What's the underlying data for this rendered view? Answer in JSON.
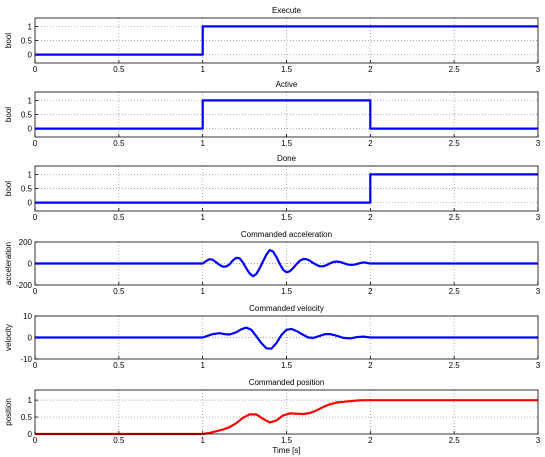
{
  "chart_data": [
    {
      "type": "line",
      "title": "Execute",
      "ylabel": "bool",
      "xlabel": "",
      "xlim": [
        0,
        3
      ],
      "ylim": [
        -0.3,
        1.3
      ],
      "xticks": [
        "0",
        "0.5",
        "1",
        "1.5",
        "2",
        "2.5",
        "3"
      ],
      "yticks": [
        "0",
        "0.5",
        "1"
      ],
      "grid": true,
      "color": "#0000ff",
      "series": [
        {
          "x": [
            0,
            1,
            1,
            3
          ],
          "y": [
            0,
            0,
            1,
            1
          ]
        }
      ]
    },
    {
      "type": "line",
      "title": "Active",
      "ylabel": "bool",
      "xlabel": "",
      "xlim": [
        0,
        3
      ],
      "ylim": [
        -0.3,
        1.3
      ],
      "xticks": [
        "0",
        "0.5",
        "1",
        "1.5",
        "2",
        "2.5",
        "3"
      ],
      "yticks": [
        "0",
        "0.5",
        "1"
      ],
      "grid": true,
      "color": "#0000ff",
      "series": [
        {
          "x": [
            0,
            1,
            1,
            2,
            2,
            3
          ],
          "y": [
            0,
            0,
            1,
            1,
            0,
            0
          ]
        }
      ]
    },
    {
      "type": "line",
      "title": "Done",
      "ylabel": "bool",
      "xlabel": "",
      "xlim": [
        0,
        3
      ],
      "ylim": [
        -0.3,
        1.3
      ],
      "xticks": [
        "0",
        "0.5",
        "1",
        "1.5",
        "2",
        "2.5",
        "3"
      ],
      "yticks": [
        "0",
        "0.5",
        "1"
      ],
      "grid": true,
      "color": "#0000ff",
      "series": [
        {
          "x": [
            0,
            2,
            2,
            3
          ],
          "y": [
            0,
            0,
            1,
            1
          ]
        }
      ]
    },
    {
      "type": "line",
      "title": "Commanded acceleration",
      "ylabel": "acceleration",
      "xlabel": "",
      "xlim": [
        0,
        3
      ],
      "ylim": [
        -200,
        200
      ],
      "xticks": [
        "0",
        "0.5",
        "1",
        "1.5",
        "2",
        "2.5",
        "3"
      ],
      "yticks": [
        "-200",
        "0",
        "200"
      ],
      "grid": true,
      "color": "#0000ff",
      "series": [
        {
          "x": [
            0,
            1.0,
            1.02,
            1.04,
            1.06,
            1.08,
            1.1,
            1.12,
            1.14,
            1.16,
            1.18,
            1.2,
            1.22,
            1.24,
            1.26,
            1.28,
            1.3,
            1.32,
            1.34,
            1.36,
            1.38,
            1.4,
            1.42,
            1.44,
            1.46,
            1.48,
            1.5,
            1.52,
            1.54,
            1.56,
            1.58,
            1.6,
            1.62,
            1.64,
            1.66,
            1.68,
            1.7,
            1.72,
            1.74,
            1.76,
            1.78,
            1.8,
            1.82,
            1.84,
            1.86,
            1.88,
            1.9,
            1.92,
            1.94,
            1.96,
            1.98,
            2.0,
            3.0
          ],
          "y": [
            0,
            0,
            22,
            40,
            35,
            12,
            -12,
            -30,
            -28,
            -8,
            28,
            52,
            48,
            10,
            -45,
            -92,
            -118,
            -98,
            -45,
            20,
            82,
            125,
            112,
            60,
            -5,
            -58,
            -82,
            -72,
            -42,
            -5,
            26,
            42,
            40,
            25,
            4,
            -14,
            -26,
            -26,
            -14,
            2,
            14,
            19,
            14,
            4,
            -7,
            -13,
            -12,
            -5,
            4,
            10,
            6,
            0,
            0
          ]
        }
      ]
    },
    {
      "type": "line",
      "title": "Commanded velocity",
      "ylabel": "velocity",
      "xlabel": "",
      "xlim": [
        0,
        3
      ],
      "ylim": [
        -10,
        10
      ],
      "xticks": [
        "0",
        "0.5",
        "1",
        "1.5",
        "2",
        "2.5",
        "3"
      ],
      "yticks": [
        "-10",
        "0",
        "10"
      ],
      "grid": true,
      "color": "#0000ff",
      "series": [
        {
          "x": [
            0,
            1.0,
            1.03,
            1.06,
            1.1,
            1.13,
            1.16,
            1.2,
            1.23,
            1.26,
            1.29,
            1.32,
            1.35,
            1.38,
            1.41,
            1.44,
            1.47,
            1.5,
            1.53,
            1.56,
            1.6,
            1.63,
            1.66,
            1.7,
            1.73,
            1.76,
            1.8,
            1.84,
            1.88,
            1.92,
            1.96,
            2.0,
            3.0
          ],
          "y": [
            0,
            0,
            0.8,
            1.6,
            2.0,
            1.6,
            1.4,
            2.4,
            3.8,
            4.6,
            3.6,
            0.6,
            -2.6,
            -5.0,
            -5.2,
            -2.6,
            1.2,
            3.6,
            4.0,
            3.0,
            1.2,
            0.0,
            -0.2,
            0.8,
            1.6,
            1.6,
            0.8,
            -0.2,
            -0.4,
            0.2,
            0.4,
            0,
            0
          ]
        }
      ]
    },
    {
      "type": "line",
      "title": "Commanded position",
      "ylabel": "position",
      "xlabel": "Time [s]",
      "xlim": [
        0,
        3
      ],
      "ylim": [
        0,
        1.3
      ],
      "xticks": [
        "0",
        "0.5",
        "1",
        "1.5",
        "2",
        "2.5",
        "3"
      ],
      "yticks": [
        "0",
        "0.5",
        "1"
      ],
      "grid": true,
      "color": "#ff0000",
      "series": [
        {
          "x": [
            0,
            1.0,
            1.04,
            1.08,
            1.12,
            1.16,
            1.2,
            1.24,
            1.28,
            1.32,
            1.36,
            1.4,
            1.44,
            1.48,
            1.52,
            1.56,
            1.6,
            1.64,
            1.68,
            1.72,
            1.76,
            1.8,
            1.84,
            1.88,
            1.92,
            1.96,
            2.0,
            3.0
          ],
          "y": [
            0,
            0,
            0.03,
            0.08,
            0.13,
            0.2,
            0.32,
            0.48,
            0.58,
            0.58,
            0.45,
            0.34,
            0.4,
            0.55,
            0.61,
            0.6,
            0.59,
            0.62,
            0.7,
            0.8,
            0.88,
            0.93,
            0.95,
            0.97,
            0.99,
            1.0,
            1.0,
            1.0
          ]
        }
      ]
    }
  ]
}
